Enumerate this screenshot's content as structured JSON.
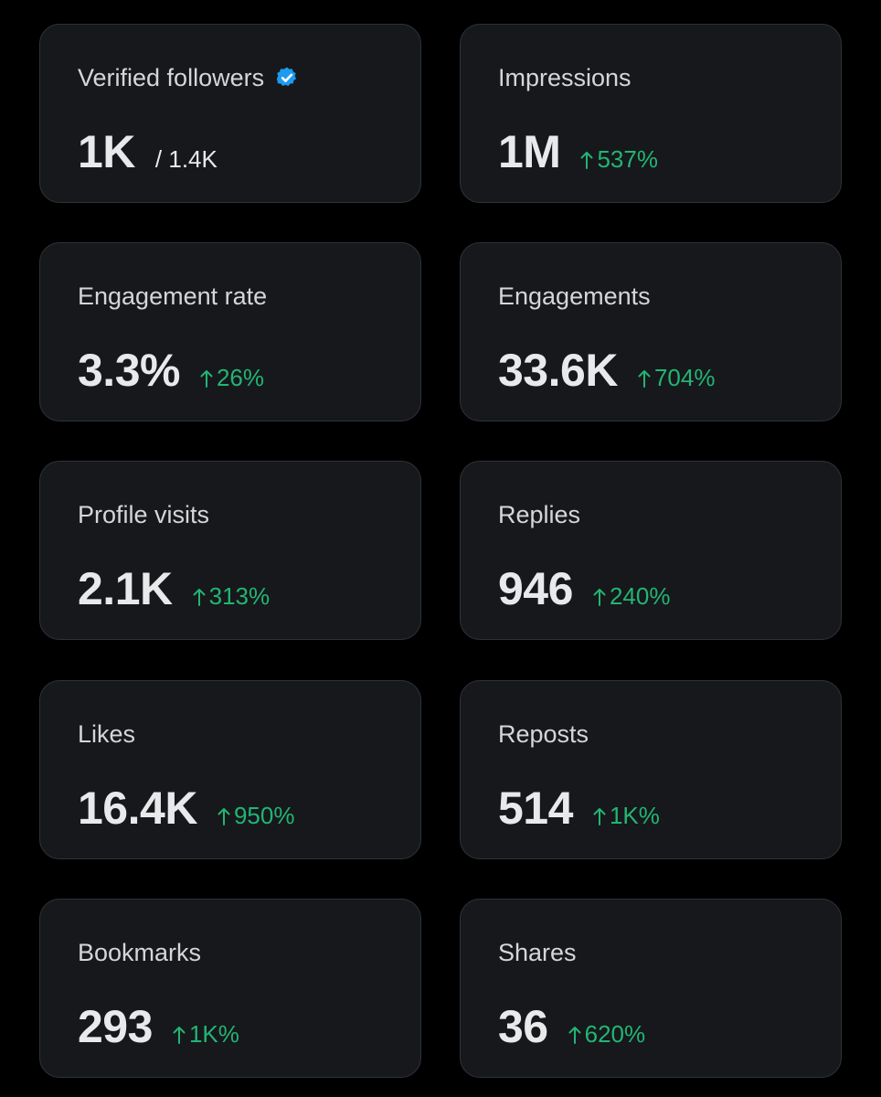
{
  "colors": {
    "background": "#000000",
    "card": "#16181c",
    "card_border": "#2f3336",
    "label": "#d4d6d9",
    "value": "#e7e9ea",
    "positive": "#22b573",
    "verified": "#1d9bf0"
  },
  "cards": [
    {
      "label": "Verified followers",
      "value": "1K",
      "secondary": "/ 1.4K",
      "icon": "verified-badge-icon"
    },
    {
      "label": "Impressions",
      "value": "1M",
      "delta": "537%",
      "icon": "arrow-up-icon"
    },
    {
      "label": "Engagement rate",
      "value": "3.3%",
      "delta": "26%",
      "icon": "arrow-up-icon"
    },
    {
      "label": "Engagements",
      "value": "33.6K",
      "delta": "704%",
      "icon": "arrow-up-icon"
    },
    {
      "label": "Profile visits",
      "value": "2.1K",
      "delta": "313%",
      "icon": "arrow-up-icon"
    },
    {
      "label": "Replies",
      "value": "946",
      "delta": "240%",
      "icon": "arrow-up-icon"
    },
    {
      "label": "Likes",
      "value": "16.4K",
      "delta": "950%",
      "icon": "arrow-up-icon"
    },
    {
      "label": "Reposts",
      "value": "514",
      "delta": "1K%",
      "icon": "arrow-up-icon"
    },
    {
      "label": "Bookmarks",
      "value": "293",
      "delta": "1K%",
      "icon": "arrow-up-icon"
    },
    {
      "label": "Shares",
      "value": "36",
      "delta": "620%",
      "icon": "arrow-up-icon"
    }
  ]
}
